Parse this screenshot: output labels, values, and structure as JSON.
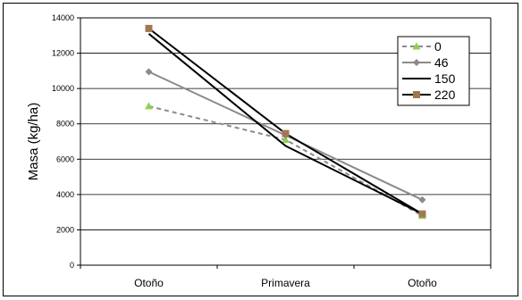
{
  "chart_data": {
    "type": "line",
    "title": "",
    "xlabel": "",
    "ylabel": "Masa (kg/ha)",
    "categories": [
      "Otoño",
      "Primavera",
      "Otoño"
    ],
    "ylim": [
      0,
      14000
    ],
    "yticks": [
      0,
      2000,
      4000,
      6000,
      8000,
      10000,
      12000,
      14000
    ],
    "grid": true,
    "legend": "top-right",
    "series": [
      {
        "name": "0",
        "values": [
          9000,
          7100,
          2800
        ],
        "color": "#8a8a8a",
        "dash": true,
        "marker": "triangle",
        "marker_color": "#8fd14f"
      },
      {
        "name": "46",
        "values": [
          10950,
          7350,
          3700
        ],
        "color": "#8a8a8a",
        "dash": false,
        "marker": "diamond",
        "marker_color": "#8a8a8a"
      },
      {
        "name": "150",
        "values": [
          13100,
          6750,
          2900
        ],
        "color": "#000000",
        "dash": false,
        "marker": "none",
        "marker_color": "#000000"
      },
      {
        "name": "220",
        "values": [
          13400,
          7450,
          2900
        ],
        "color": "#000000",
        "dash": false,
        "marker": "square",
        "marker_color": "#a07850"
      }
    ]
  }
}
